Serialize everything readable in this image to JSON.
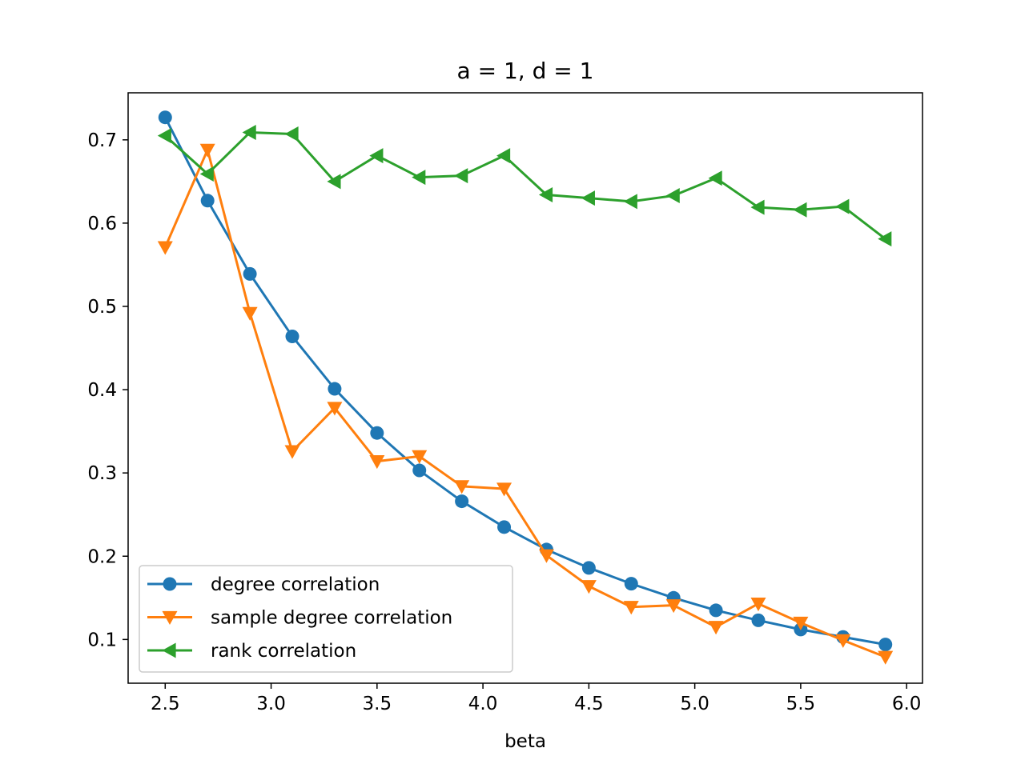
{
  "chart_data": {
    "type": "line",
    "title": "a = 1, d = 1",
    "xlabel": "beta",
    "ylabel": "",
    "xlim": [
      2.325,
      6.075
    ],
    "ylim": [
      0.0475,
      0.7565
    ],
    "xticks": [
      2.5,
      3.0,
      3.5,
      4.0,
      4.5,
      5.0,
      5.5,
      6.0
    ],
    "xtick_labels": [
      "2.5",
      "3.0",
      "3.5",
      "4.0",
      "4.5",
      "5.0",
      "5.5",
      "6.0"
    ],
    "yticks": [
      0.1,
      0.2,
      0.3,
      0.4,
      0.5,
      0.6,
      0.7
    ],
    "ytick_labels": [
      "0.1",
      "0.2",
      "0.3",
      "0.4",
      "0.5",
      "0.6",
      "0.7"
    ],
    "grid": false,
    "legend": "lower-left",
    "x": [
      2.5,
      2.7,
      2.9,
      3.1,
      3.3,
      3.5,
      3.7,
      3.9,
      4.1,
      4.3,
      4.5,
      4.7,
      4.9,
      5.1,
      5.3,
      5.5,
      5.7,
      5.9
    ],
    "series": [
      {
        "name": "degree correlation",
        "color": "#1f77b4",
        "marker": "circle",
        "values": [
          0.727,
          0.627,
          0.539,
          0.464,
          0.401,
          0.348,
          0.303,
          0.266,
          0.235,
          0.208,
          0.186,
          0.167,
          0.15,
          0.135,
          0.123,
          0.112,
          0.103,
          0.094
        ]
      },
      {
        "name": "sample degree correlation",
        "color": "#ff7f0e",
        "marker": "triangle-down",
        "values": [
          0.571,
          0.688,
          0.492,
          0.326,
          0.378,
          0.314,
          0.32,
          0.284,
          0.281,
          0.201,
          0.164,
          0.139,
          0.141,
          0.115,
          0.143,
          0.12,
          0.099,
          0.079
        ]
      },
      {
        "name": "rank correlation",
        "color": "#2ca02c",
        "marker": "triangle-left",
        "values": [
          0.705,
          0.659,
          0.709,
          0.707,
          0.65,
          0.681,
          0.655,
          0.657,
          0.681,
          0.634,
          0.63,
          0.626,
          0.633,
          0.654,
          0.619,
          0.616,
          0.62,
          0.581
        ]
      }
    ]
  }
}
